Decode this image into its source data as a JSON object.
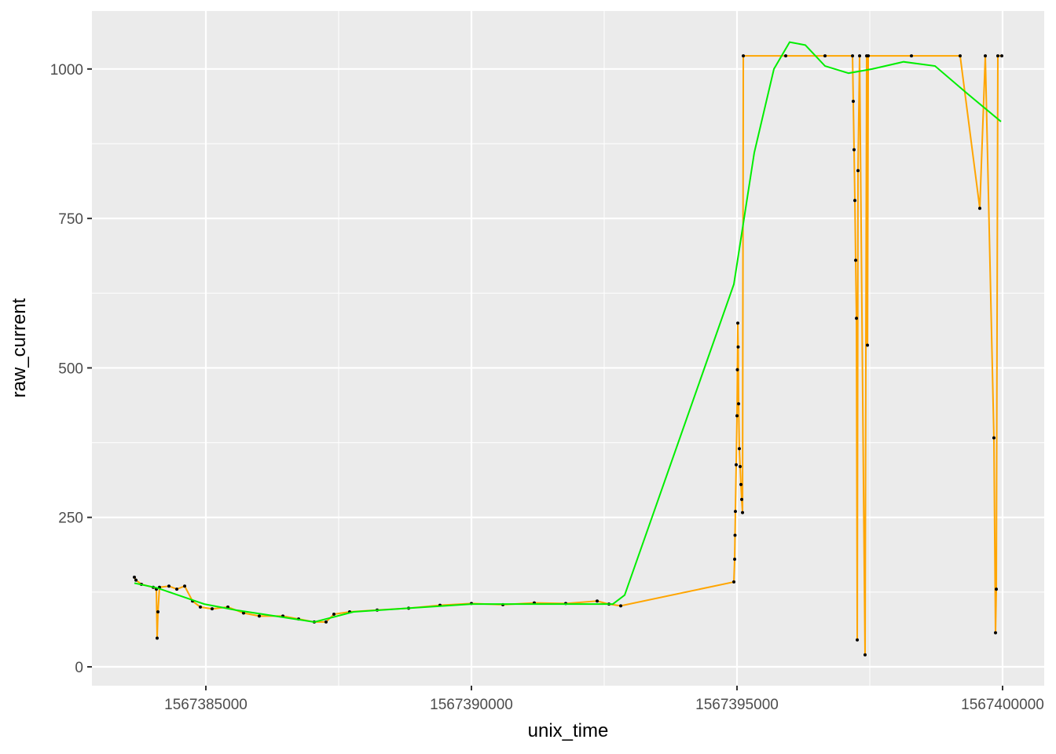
{
  "chart_data": {
    "type": "line",
    "x_label": "unix_time",
    "y_label": "raw_current",
    "xlim": [
      1567382855,
      1567400784
    ],
    "ylim": [
      -31.5,
      1097
    ],
    "xticks": [
      1567385000,
      1567390000,
      1567395000,
      1567400000
    ],
    "yticks": [
      0,
      250,
      500,
      750,
      1000
    ],
    "grid": true,
    "minor_grid": true,
    "background": "#ebebeb",
    "series": [
      {
        "color": "#ffa500",
        "marker_color": "#000000",
        "markers": true,
        "x": [
          1567383654,
          1567383684,
          1567383787,
          1567384009,
          1567384068,
          1567384083,
          1567384098,
          1567384127,
          1567384305,
          1567384453,
          1567384601,
          1567384749,
          1567384896,
          1567385118,
          1567385414,
          1567385710,
          1567386006,
          1567386450,
          1567386746,
          1567387041,
          1567387263,
          1567387411,
          1567387707,
          1567388225,
          1567388817,
          1567389408,
          1567390000,
          1567390592,
          1567391183,
          1567391775,
          1567392367,
          1567392589,
          1567392811,
          1567394941,
          1567394956,
          1567394963,
          1567394970,
          1567394985,
          1567395000,
          1567395007,
          1567395015,
          1567395022,
          1567395030,
          1567395044,
          1567395059,
          1567395074,
          1567395089,
          1567395104,
          1567395119,
          1567395917,
          1567396657,
          1567397175,
          1567397189,
          1567397204,
          1567397219,
          1567397234,
          1567397249,
          1567397264,
          1567397278,
          1567397308,
          1567397411,
          1567397441,
          1567397456,
          1567397471,
          1567398284,
          1567399201,
          1567399571,
          1567399675,
          1567399837,
          1567399867,
          1567399882,
          1567399911,
          1567399985
        ],
        "values": [
          150,
          145,
          138,
          133,
          130,
          48,
          92,
          133,
          135,
          130,
          135,
          110,
          100,
          97,
          100,
          90,
          85,
          85,
          80,
          75,
          75,
          88,
          92,
          95,
          98,
          103,
          106,
          104,
          107,
          106,
          110,
          105,
          102,
          142,
          180,
          220,
          260,
          338,
          420,
          497,
          575,
          535,
          440,
          365,
          335,
          305,
          280,
          258,
          1022,
          1022,
          1022,
          1022,
          946,
          865,
          780,
          680,
          583,
          45,
          830,
          1022,
          20,
          1022,
          538,
          1022,
          1022,
          1022,
          767,
          1022,
          383,
          57,
          130,
          1022,
          1022
        ]
      },
      {
        "color": "#00ee00",
        "markers": false,
        "x": [
          1567383654,
          1567384083,
          1567384970,
          1567385562,
          1567387041,
          1567387781,
          1567390000,
          1567392663,
          1567392885,
          1567394941,
          1567395325,
          1567395695,
          1567395991,
          1567396287,
          1567396657,
          1567397101,
          1567397544,
          1567398136,
          1567398728,
          1567399320,
          1567399970
        ],
        "values": [
          140,
          132,
          105,
          95,
          75,
          92,
          105,
          105,
          120,
          640,
          860,
          1000,
          1045,
          1040,
          1005,
          993,
          1000,
          1012,
          1005,
          960,
          912
        ]
      }
    ]
  }
}
